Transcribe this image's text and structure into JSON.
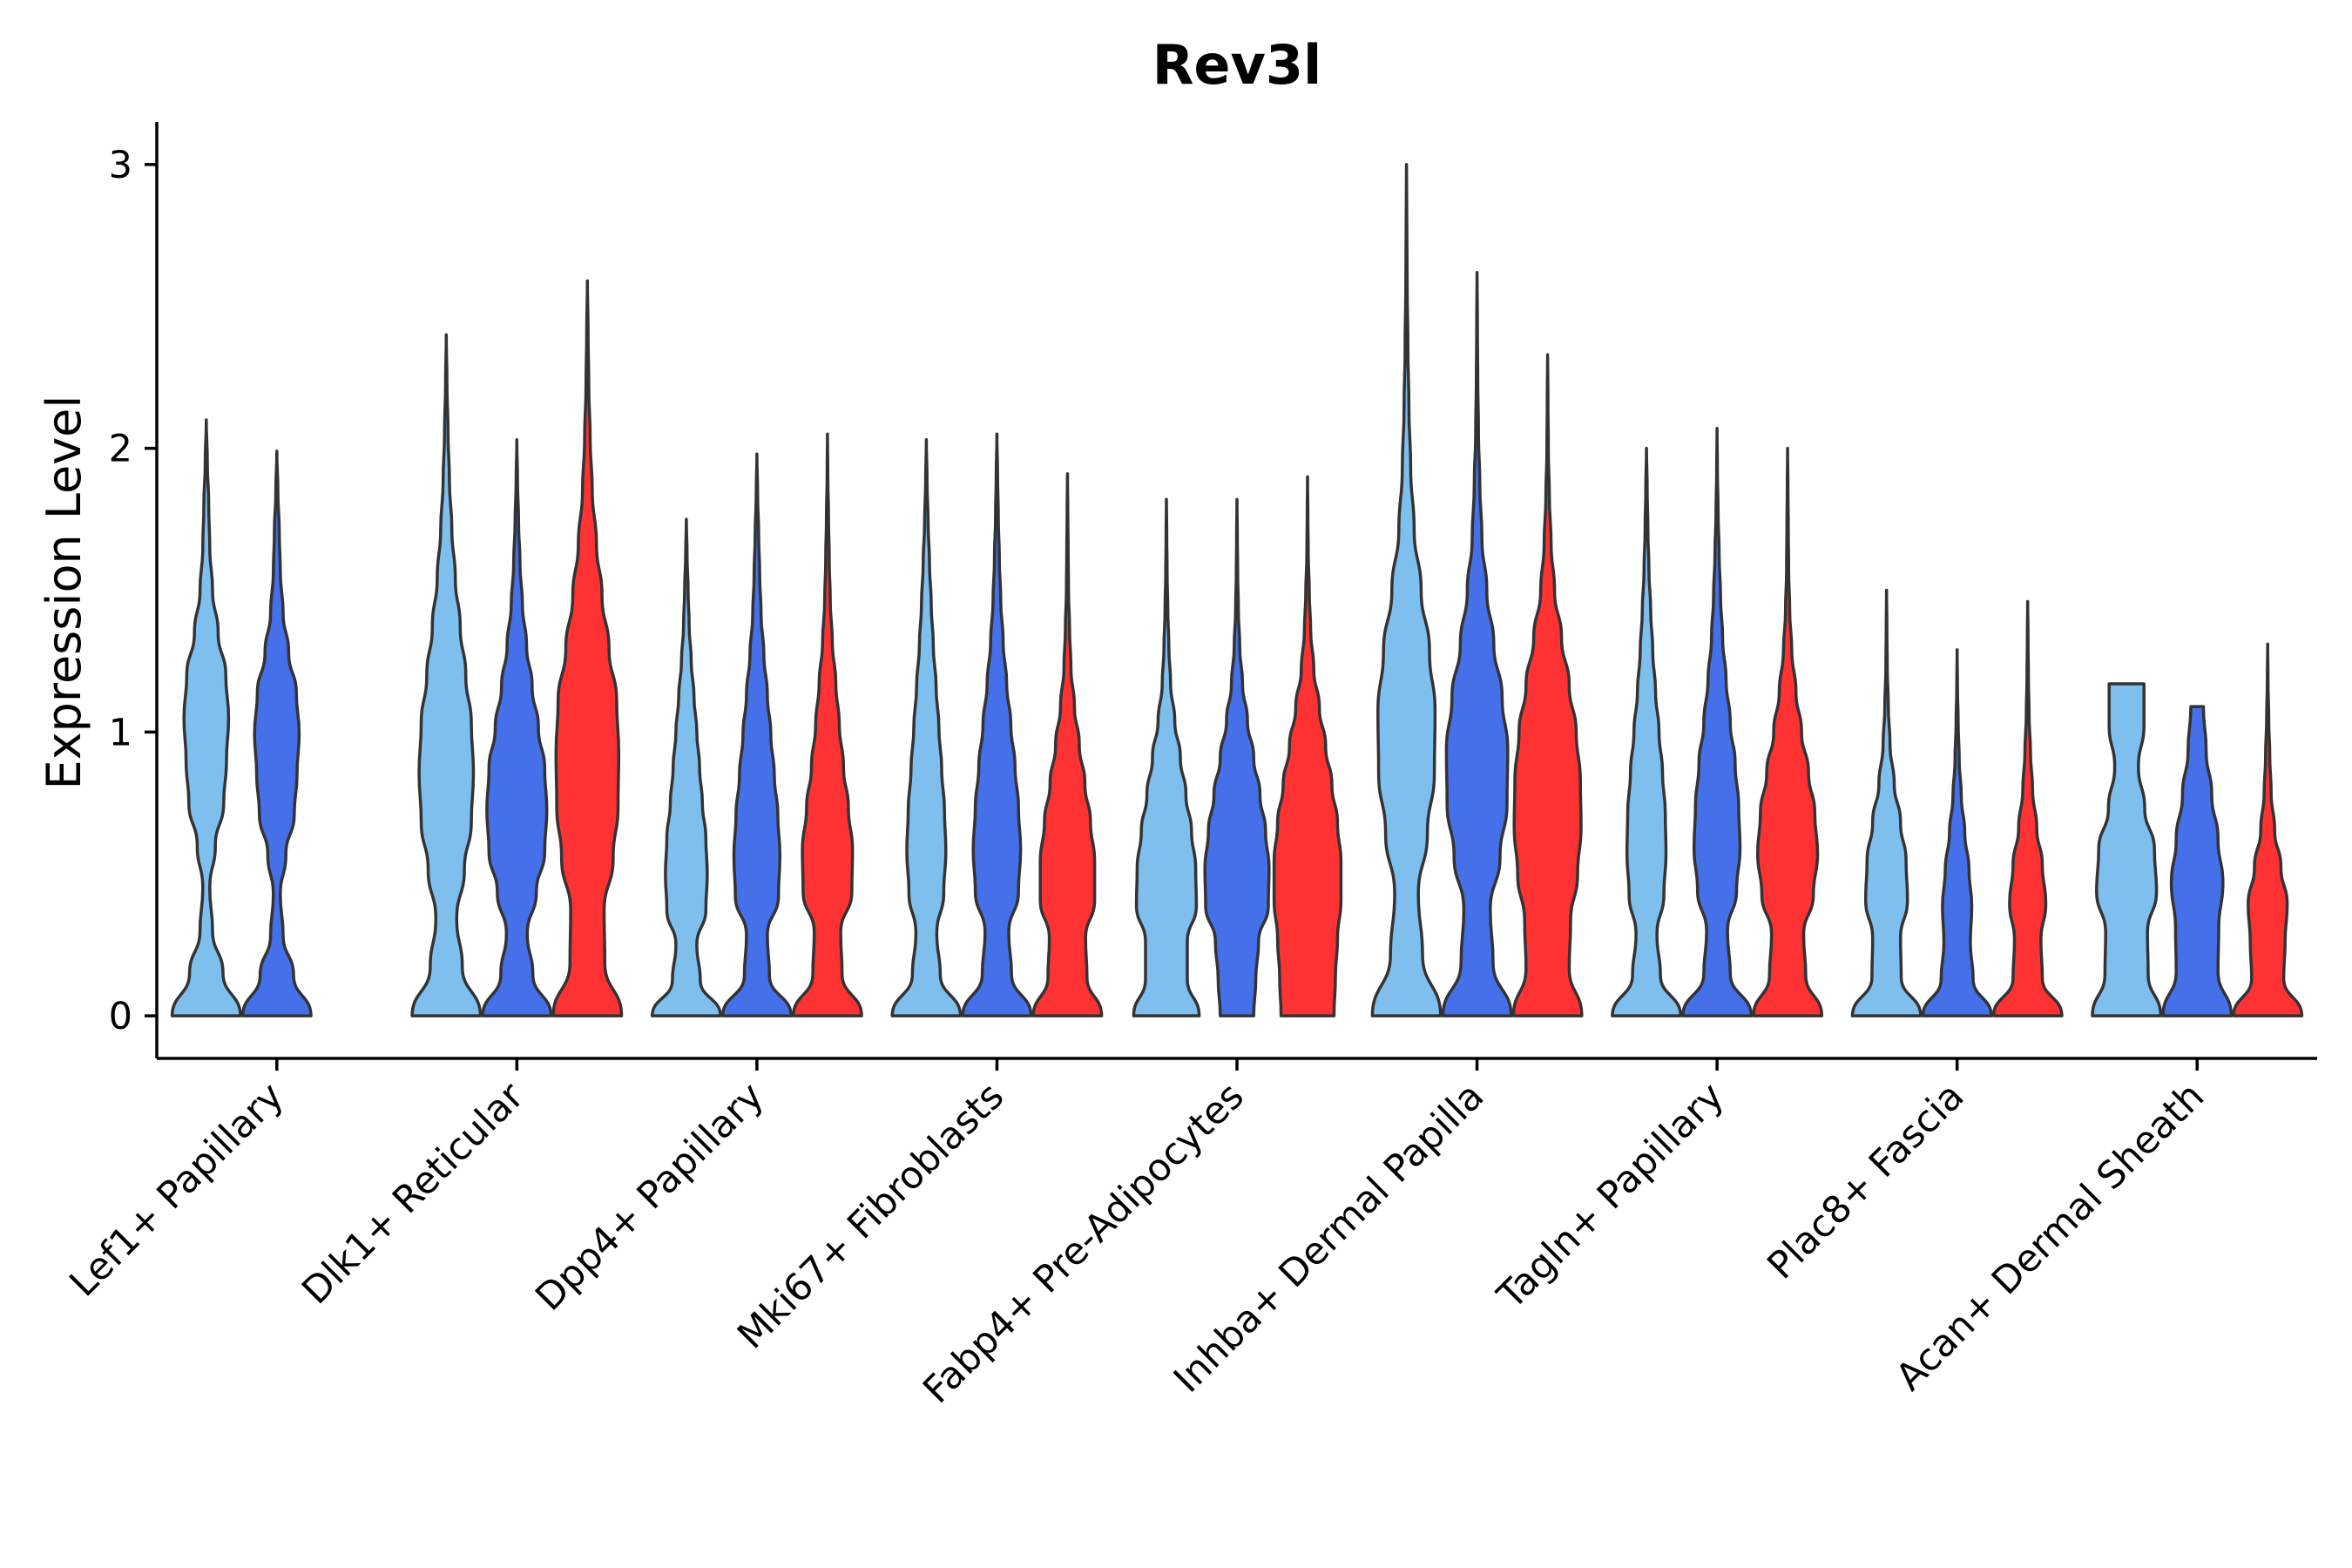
{
  "chart_data": {
    "type": "violin",
    "title": "Rev3l",
    "xlabel": "",
    "ylabel": "Expression Level",
    "ylim": [
      -0.15,
      3.15
    ],
    "yticks": [
      0,
      1,
      2,
      3
    ],
    "legend": "none",
    "series_colors": [
      "#7fbfee",
      "#4570ea",
      "#fe3233"
    ],
    "categories": [
      "Lef1+ Papillary",
      "Dlk1+ Reticular",
      "Dpp4+ Papillary",
      "Mki67+ Fibroblasts",
      "Fabp4+ Pre-Adipocytes",
      "Inhba+ Dermal Papilla",
      "Tagln+ Papillary",
      "Plac8+ Fascia",
      "Acan+ Dermal Sheath"
    ],
    "violins": [
      {
        "category": 0,
        "series": 0,
        "max": 2.1,
        "widths": [
          0.98,
          0.48,
          0.18,
          0.1,
          0.26,
          0.5,
          0.58,
          0.64,
          0.56,
          0.34,
          0.18,
          0.1,
          0.07,
          0.03,
          0.0
        ]
      },
      {
        "category": 0,
        "series": 1,
        "max": 1.99,
        "widths": [
          0.98,
          0.48,
          0.18,
          0.1,
          0.26,
          0.5,
          0.58,
          0.64,
          0.56,
          0.34,
          0.18,
          0.1,
          0.07,
          0.03,
          0.0
        ]
      },
      {
        "category": 1,
        "series": 0,
        "max": 2.4,
        "widths": [
          0.98,
          0.46,
          0.3,
          0.52,
          0.72,
          0.78,
          0.72,
          0.56,
          0.4,
          0.26,
          0.16,
          0.09,
          0.05,
          0.02,
          0.0
        ]
      },
      {
        "category": 1,
        "series": 1,
        "max": 2.03,
        "widths": [
          0.98,
          0.46,
          0.3,
          0.56,
          0.8,
          0.86,
          0.8,
          0.62,
          0.44,
          0.28,
          0.16,
          0.09,
          0.05,
          0.02,
          0.0
        ]
      },
      {
        "category": 1,
        "series": 2,
        "max": 2.59,
        "widths": [
          0.98,
          0.5,
          0.48,
          0.74,
          0.88,
          0.9,
          0.84,
          0.62,
          0.42,
          0.26,
          0.14,
          0.08,
          0.04,
          0.02,
          0.0
        ]
      },
      {
        "category": 2,
        "series": 0,
        "max": 1.75,
        "widths": [
          0.98,
          0.4,
          0.3,
          0.56,
          0.6,
          0.56,
          0.46,
          0.38,
          0.3,
          0.22,
          0.14,
          0.08,
          0.05,
          0.02,
          0.0
        ]
      },
      {
        "category": 2,
        "series": 1,
        "max": 1.98,
        "widths": [
          0.98,
          0.36,
          0.3,
          0.62,
          0.66,
          0.6,
          0.5,
          0.4,
          0.3,
          0.2,
          0.12,
          0.08,
          0.05,
          0.02,
          0.0
        ]
      },
      {
        "category": 2,
        "series": 2,
        "max": 2.05,
        "widths": [
          0.98,
          0.42,
          0.38,
          0.7,
          0.72,
          0.6,
          0.46,
          0.34,
          0.24,
          0.14,
          0.08,
          0.05,
          0.03,
          0.01,
          0.0
        ]
      },
      {
        "category": 3,
        "series": 0,
        "max": 2.03,
        "widths": [
          0.98,
          0.4,
          0.3,
          0.5,
          0.56,
          0.52,
          0.44,
          0.36,
          0.28,
          0.2,
          0.14,
          0.09,
          0.05,
          0.02,
          0.0
        ]
      },
      {
        "category": 3,
        "series": 1,
        "max": 2.05,
        "widths": [
          0.98,
          0.42,
          0.34,
          0.62,
          0.68,
          0.62,
          0.52,
          0.4,
          0.28,
          0.18,
          0.11,
          0.07,
          0.04,
          0.02,
          0.0
        ]
      },
      {
        "category": 3,
        "series": 2,
        "max": 1.91,
        "widths": [
          0.98,
          0.56,
          0.52,
          0.78,
          0.78,
          0.66,
          0.5,
          0.34,
          0.2,
          0.1,
          0.06,
          0.03,
          0.02,
          0.01,
          0.0
        ]
      },
      {
        "category": 4,
        "series": 0,
        "max": 1.82,
        "widths": [
          0.94,
          0.6,
          0.6,
          0.86,
          0.84,
          0.72,
          0.56,
          0.4,
          0.24,
          0.12,
          0.07,
          0.04,
          0.02,
          0.01,
          0.0
        ]
      },
      {
        "category": 4,
        "series": 1,
        "max": 1.82,
        "widths": [
          0.48,
          0.54,
          0.62,
          0.9,
          0.92,
          0.82,
          0.66,
          0.48,
          0.3,
          0.16,
          0.08,
          0.04,
          0.02,
          0.01,
          0.0
        ]
      },
      {
        "category": 4,
        "series": 2,
        "max": 1.9,
        "widths": [
          0.76,
          0.8,
          0.86,
          0.96,
          0.96,
          0.86,
          0.7,
          0.52,
          0.34,
          0.18,
          0.09,
          0.05,
          0.02,
          0.01,
          0.0
        ]
      },
      {
        "category": 5,
        "series": 0,
        "max": 3.0,
        "widths": [
          0.98,
          0.46,
          0.34,
          0.6,
          0.8,
          0.82,
          0.66,
          0.42,
          0.22,
          0.12,
          0.07,
          0.04,
          0.02,
          0.01,
          0.0
        ]
      },
      {
        "category": 5,
        "series": 1,
        "max": 2.62,
        "widths": [
          0.98,
          0.46,
          0.38,
          0.66,
          0.86,
          0.88,
          0.72,
          0.48,
          0.28,
          0.14,
          0.08,
          0.04,
          0.02,
          0.01,
          0.0
        ]
      },
      {
        "category": 5,
        "series": 2,
        "max": 2.33,
        "widths": [
          0.98,
          0.62,
          0.66,
          0.86,
          0.96,
          0.94,
          0.82,
          0.62,
          0.4,
          0.2,
          0.1,
          0.05,
          0.02,
          0.01,
          0.0
        ]
      },
      {
        "category": 6,
        "series": 0,
        "max": 2.0,
        "widths": [
          0.98,
          0.4,
          0.3,
          0.5,
          0.56,
          0.54,
          0.46,
          0.36,
          0.26,
          0.18,
          0.12,
          0.07,
          0.04,
          0.02,
          0.0
        ]
      },
      {
        "category": 6,
        "series": 1,
        "max": 2.07,
        "widths": [
          0.98,
          0.38,
          0.3,
          0.56,
          0.66,
          0.62,
          0.52,
          0.38,
          0.26,
          0.16,
          0.1,
          0.06,
          0.03,
          0.01,
          0.0
        ]
      },
      {
        "category": 6,
        "series": 2,
        "max": 2.0,
        "widths": [
          0.98,
          0.52,
          0.46,
          0.74,
          0.86,
          0.78,
          0.6,
          0.4,
          0.24,
          0.12,
          0.06,
          0.03,
          0.02,
          0.01,
          0.0
        ]
      },
      {
        "category": 7,
        "series": 0,
        "max": 1.5,
        "widths": [
          0.98,
          0.42,
          0.4,
          0.6,
          0.56,
          0.4,
          0.22,
          0.1,
          0.05,
          0.02,
          0.01,
          0.0
        ]
      },
      {
        "category": 7,
        "series": 1,
        "max": 1.29,
        "widths": [
          0.98,
          0.46,
          0.38,
          0.42,
          0.34,
          0.22,
          0.12,
          0.06,
          0.03,
          0.01,
          0.0
        ]
      },
      {
        "category": 7,
        "series": 2,
        "max": 1.46,
        "widths": [
          0.98,
          0.42,
          0.38,
          0.52,
          0.42,
          0.26,
          0.14,
          0.08,
          0.04,
          0.02,
          0.01,
          0.0
        ]
      },
      {
        "category": 8,
        "series": 0,
        "max": 1.17,
        "widths": [
          0.98,
          0.62,
          0.6,
          0.86,
          0.8,
          0.52,
          0.34,
          0.5,
          0.5
        ]
      },
      {
        "category": 8,
        "series": 1,
        "max": 1.09,
        "widths": [
          0.98,
          0.6,
          0.62,
          0.74,
          0.6,
          0.42,
          0.26,
          0.18
        ]
      },
      {
        "category": 8,
        "series": 2,
        "max": 1.31,
        "widths": [
          0.98,
          0.46,
          0.5,
          0.56,
          0.38,
          0.2,
          0.1,
          0.06,
          0.03,
          0.01,
          0.0
        ]
      }
    ]
  }
}
